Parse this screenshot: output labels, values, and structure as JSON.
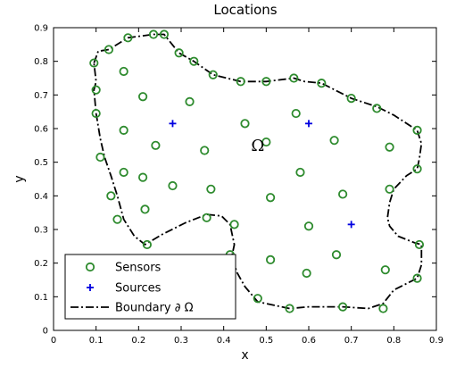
{
  "chart_data": {
    "type": "scatter",
    "title": "Locations",
    "xlabel": "x",
    "ylabel": "y",
    "xlim": [
      0,
      0.9
    ],
    "ylim": [
      0,
      0.9
    ],
    "xticks": [
      "0",
      "0.1",
      "0.2",
      "0.3",
      "0.4",
      "0.5",
      "0.6",
      "0.7",
      "0.8",
      "0.9"
    ],
    "yticks": [
      "0",
      "0.1",
      "0.2",
      "0.3",
      "0.4",
      "0.5",
      "0.6",
      "0.7",
      "0.8",
      "0.9"
    ],
    "grid": false,
    "legend_position": "bottom-left",
    "annotation": {
      "text": "Ω",
      "x": 0.48,
      "y": 0.55
    },
    "colors": {
      "sensors": "#2e8b2e",
      "sources": "#0000e0",
      "boundary": "#000000"
    },
    "series": [
      {
        "name": "Sensors",
        "marker": "circle",
        "x": [
          0.095,
          0.13,
          0.175,
          0.235,
          0.26,
          0.295,
          0.33,
          0.375,
          0.44,
          0.5,
          0.565,
          0.63,
          0.7,
          0.76,
          0.855,
          0.1,
          0.1,
          0.11,
          0.135,
          0.15,
          0.165,
          0.165,
          0.21,
          0.24,
          0.28,
          0.32,
          0.355,
          0.37,
          0.36,
          0.425,
          0.415,
          0.215,
          0.45,
          0.5,
          0.51,
          0.51,
          0.57,
          0.58,
          0.6,
          0.595,
          0.555,
          0.66,
          0.68,
          0.665,
          0.78,
          0.79,
          0.79,
          0.855,
          0.86,
          0.855,
          0.775,
          0.68,
          0.48,
          0.22,
          0.21,
          0.165
        ],
        "y": [
          0.795,
          0.835,
          0.87,
          0.88,
          0.88,
          0.825,
          0.8,
          0.76,
          0.74,
          0.74,
          0.75,
          0.735,
          0.69,
          0.66,
          0.595,
          0.715,
          0.645,
          0.515,
          0.4,
          0.33,
          0.595,
          0.77,
          0.695,
          0.55,
          0.43,
          0.68,
          0.535,
          0.42,
          0.335,
          0.315,
          0.225,
          0.36,
          0.615,
          0.56,
          0.395,
          0.21,
          0.645,
          0.47,
          0.31,
          0.17,
          0.065,
          0.565,
          0.405,
          0.225,
          0.18,
          0.42,
          0.545,
          0.48,
          0.255,
          0.155,
          0.065,
          0.07,
          0.095,
          0.255,
          0.455,
          0.47
        ]
      },
      {
        "name": "Sources",
        "marker": "plus",
        "x": [
          0.28,
          0.6,
          0.7
        ],
        "y": [
          0.615,
          0.615,
          0.315
        ]
      },
      {
        "name": "Boundary ∂ Ω",
        "marker": "dash-dot-line",
        "x": [
          0.095,
          0.105,
          0.13,
          0.175,
          0.235,
          0.26,
          0.295,
          0.33,
          0.375,
          0.44,
          0.5,
          0.565,
          0.59,
          0.63,
          0.7,
          0.76,
          0.8,
          0.855,
          0.865,
          0.86,
          0.855,
          0.83,
          0.8,
          0.79,
          0.785,
          0.79,
          0.81,
          0.85,
          0.865,
          0.865,
          0.855,
          0.8,
          0.775,
          0.74,
          0.68,
          0.6,
          0.555,
          0.48,
          0.45,
          0.43,
          0.42,
          0.425,
          0.415,
          0.395,
          0.36,
          0.31,
          0.255,
          0.215,
          0.19,
          0.165,
          0.15,
          0.135,
          0.12,
          0.11,
          0.1,
          0.095,
          0.1,
          0.095
        ],
        "y": [
          0.795,
          0.83,
          0.835,
          0.87,
          0.88,
          0.88,
          0.825,
          0.8,
          0.76,
          0.74,
          0.74,
          0.75,
          0.74,
          0.735,
          0.69,
          0.665,
          0.64,
          0.595,
          0.555,
          0.51,
          0.48,
          0.46,
          0.42,
          0.38,
          0.335,
          0.31,
          0.28,
          0.26,
          0.255,
          0.195,
          0.155,
          0.12,
          0.08,
          0.065,
          0.07,
          0.07,
          0.065,
          0.085,
          0.13,
          0.175,
          0.225,
          0.255,
          0.315,
          0.34,
          0.345,
          0.32,
          0.285,
          0.255,
          0.28,
          0.33,
          0.4,
          0.46,
          0.515,
          0.57,
          0.645,
          0.715,
          0.74,
          0.795
        ]
      }
    ],
    "legend": [
      {
        "label": "Sensors",
        "marker": "circle"
      },
      {
        "label": "Sources",
        "marker": "plus"
      },
      {
        "label": "Boundary ∂ Ω",
        "marker": "dash-dot-line"
      }
    ]
  }
}
